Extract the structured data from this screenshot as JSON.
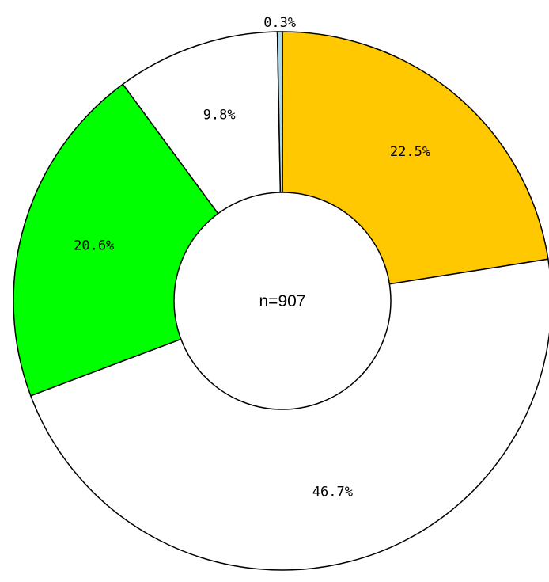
{
  "chart_data": {
    "type": "pie",
    "donut": true,
    "center_label": "n=907",
    "slices": [
      {
        "value": 22.5,
        "label": "22.5%",
        "color": "#FFC800"
      },
      {
        "value": 46.7,
        "label": "46.7%",
        "color": "#FFFFFF"
      },
      {
        "value": 20.6,
        "label": "20.6%",
        "color": "#00FF00"
      },
      {
        "value": 9.8,
        "label": "9.8%",
        "color": "#FFFFFF"
      },
      {
        "value": 0.3,
        "label": "0.3%",
        "color": "#ADD8E6"
      }
    ],
    "start": "12 o'clock",
    "direction": "clockwise",
    "legend": "none"
  }
}
